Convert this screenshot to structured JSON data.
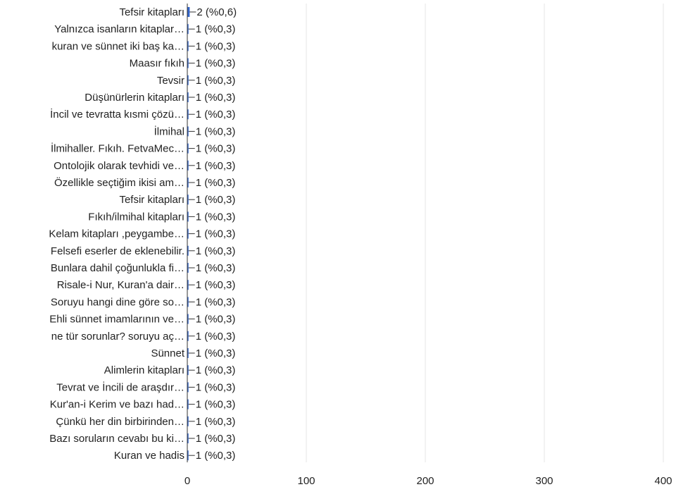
{
  "chart_data": {
    "type": "bar",
    "orientation": "horizontal",
    "categories": [
      "Tefsir kitapları",
      "Yalnızca isanların kitaplar…",
      "kuran ve sünnet iki baş ka…",
      "Maasır fıkıh",
      "Tevsir",
      "Düşünürlerin kitapları",
      "İncil ve tevratta kısmi çözü…",
      "İlmihal",
      "İlmihaller. Fıkıh. FetvaMec…",
      "Ontolojik olarak tevhidi ve…",
      "Özellikle seçtiğim ikisi am…",
      "Tefsir kitapları",
      "Fıkıh/ilmihal kitapları",
      "Kelam kitapları ,peygambe…",
      "Felsefi eserler de eklenebilir.",
      "Bunlara dahil çoğunlukla fi…",
      "Risale-i Nur, Kuran'a dair…",
      "Soruyu hangi dine göre so…",
      "Ehli sünnet imamlarının ve…",
      "ne tür sorunlar? soruyu aç…",
      "Sünnet",
      "Alimlerin kitapları",
      "Tevrat ve İncili de araşdır…",
      "Kur'an-i Kerim ve bazı had…",
      "Çünkü her din birbirinden…",
      "Bazı soruların cevabı bu ki…",
      "Kuran ve hadis"
    ],
    "values": [
      2,
      1,
      1,
      1,
      1,
      1,
      1,
      1,
      1,
      1,
      1,
      1,
      1,
      1,
      1,
      1,
      1,
      1,
      1,
      1,
      1,
      1,
      1,
      1,
      1,
      1,
      1
    ],
    "value_labels": [
      "2 (%0,6)",
      "1 (%0,3)",
      "1 (%0,3)",
      "1 (%0,3)",
      "1 (%0,3)",
      "1 (%0,3)",
      "1 (%0,3)",
      "1 (%0,3)",
      "1 (%0,3)",
      "1 (%0,3)",
      "1 (%0,3)",
      "1 (%0,3)",
      "1 (%0,3)",
      "1 (%0,3)",
      "1 (%0,3)",
      "1 (%0,3)",
      "1 (%0,3)",
      "1 (%0,3)",
      "1 (%0,3)",
      "1 (%0,3)",
      "1 (%0,3)",
      "1 (%0,3)",
      "1 (%0,3)",
      "1 (%0,3)",
      "1 (%0,3)",
      "1 (%0,3)",
      "1 (%0,3)"
    ],
    "x_ticks": [
      0,
      100,
      200,
      300,
      400
    ],
    "xlim": [
      0,
      400
    ],
    "grid": true,
    "bar_color": "#3366cc",
    "gridline_color": "#e6e6e6",
    "axis_color": "#333333",
    "text_color": "#222222"
  }
}
